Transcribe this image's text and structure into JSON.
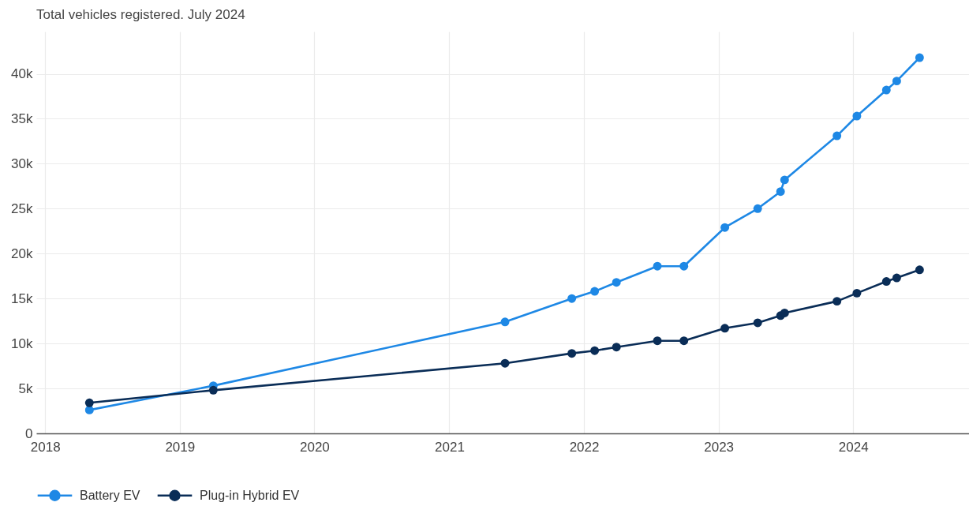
{
  "chart_data": {
    "type": "line",
    "title": "Total vehicles registered. July 2024",
    "x": [
      "2018-05-01",
      "2019-04-02",
      "2021-06-01",
      "2021-11-29",
      "2022-01-30",
      "2022-03-30",
      "2022-07-19",
      "2022-09-29",
      "2023-01-18",
      "2023-04-17",
      "2023-06-18",
      "2023-06-29",
      "2023-11-18",
      "2024-01-11",
      "2024-03-31",
      "2024-04-28",
      "2024-06-29"
    ],
    "series": [
      {
        "name": "Battery EV",
        "color": "#1e88e5",
        "values": [
          2600,
          5300,
          12400,
          15000,
          15800,
          16800,
          18600,
          18600,
          22900,
          25000,
          26900,
          28200,
          33100,
          35300,
          38200,
          39200,
          41800
        ]
      },
      {
        "name": "Plug-in Hybrid EV",
        "color": "#0a2d57",
        "values": [
          3400,
          4800,
          7800,
          8900,
          9200,
          9600,
          10300,
          10300,
          11700,
          12300,
          13100,
          13400,
          14700,
          15600,
          16900,
          17300,
          18200
        ]
      }
    ],
    "xlim": [
      "2017-12-08",
      "2024-11-10"
    ],
    "xticks": [
      "2018",
      "2019",
      "2020",
      "2021",
      "2022",
      "2023",
      "2024"
    ],
    "ylim": [
      0,
      44700
    ],
    "yticks": [
      0,
      {
        "value": 5000,
        "label": "5k"
      },
      {
        "value": 10000,
        "label": "10k"
      },
      {
        "value": 15000,
        "label": "15k"
      },
      {
        "value": 20000,
        "label": "20k"
      },
      {
        "value": 25000,
        "label": "25k"
      },
      {
        "value": 30000,
        "label": "30k"
      },
      {
        "value": 35000,
        "label": "35k"
      },
      {
        "value": 40000,
        "label": "40k"
      }
    ],
    "grid": true,
    "legend": "bottom left",
    "marker": "circle",
    "line_style": "solid"
  }
}
